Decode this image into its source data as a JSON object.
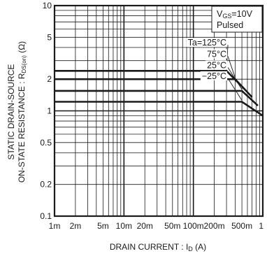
{
  "chart_data": {
    "type": "line",
    "x_scale": "log",
    "y_scale": "log",
    "xlim": [
      0.001,
      1
    ],
    "ylim": [
      0.1,
      10
    ],
    "grid": true,
    "xlabel": {
      "prefix": "DRAIN  CURRENT : I",
      "sub": "D",
      "suffix": "  (A)"
    },
    "ylabel": {
      "line1": "STATIC  DRAIN-SOURCE",
      "line2_prefix": "ON-STATE  RESISTANCE : R",
      "line2_sub": "DS(on)",
      "line2_suffix": "  (Ω)"
    },
    "x_ticks": [
      {
        "v": 0.001,
        "label": "1m"
      },
      {
        "v": 0.002,
        "label": "2m"
      },
      {
        "v": 0.005,
        "label": "5m"
      },
      {
        "v": 0.01,
        "label": "10m"
      },
      {
        "v": 0.02,
        "label": "20m"
      },
      {
        "v": 0.05,
        "label": "50m"
      },
      {
        "v": 0.1,
        "label": "100m"
      },
      {
        "v": 0.2,
        "label": "200m"
      },
      {
        "v": 0.5,
        "label": "500m"
      },
      {
        "v": 1,
        "label": "1"
      }
    ],
    "y_ticks": [
      {
        "v": 0.1,
        "label": "0.1"
      },
      {
        "v": 0.2,
        "label": "0.2"
      },
      {
        "v": 0.5,
        "label": "0.5"
      },
      {
        "v": 1,
        "label": "1"
      },
      {
        "v": 2,
        "label": "2"
      },
      {
        "v": 5,
        "label": "5"
      },
      {
        "v": 10,
        "label": "10"
      }
    ],
    "legend_box": {
      "prefix": "V",
      "sub": "GS",
      "suffix": "=10V",
      "line2": "Pulsed",
      "placement": "top-right"
    },
    "series": [
      {
        "name": "Ta=125°C",
        "label_anchor": [
          0.3,
          4.3
        ],
        "points": [
          [
            0.001,
            2.4
          ],
          [
            0.3,
            2.4
          ],
          [
            0.55,
            1.6
          ]
        ]
      },
      {
        "name": "75°C",
        "label_anchor": [
          0.3,
          3.35
        ],
        "points": [
          [
            0.001,
            2.0
          ],
          [
            0.4,
            2.0
          ],
          [
            0.7,
            1.35
          ]
        ]
      },
      {
        "name": "25°C",
        "label_anchor": [
          0.3,
          2.62
        ],
        "points": [
          [
            0.001,
            1.55
          ],
          [
            0.5,
            1.55
          ],
          [
            0.85,
            1.12
          ]
        ]
      },
      {
        "name": "−25°C",
        "label_anchor": [
          0.3,
          2.07
        ],
        "points": [
          [
            0.001,
            1.22
          ],
          [
            0.5,
            1.22
          ],
          [
            1.0,
            0.9
          ]
        ]
      }
    ]
  }
}
